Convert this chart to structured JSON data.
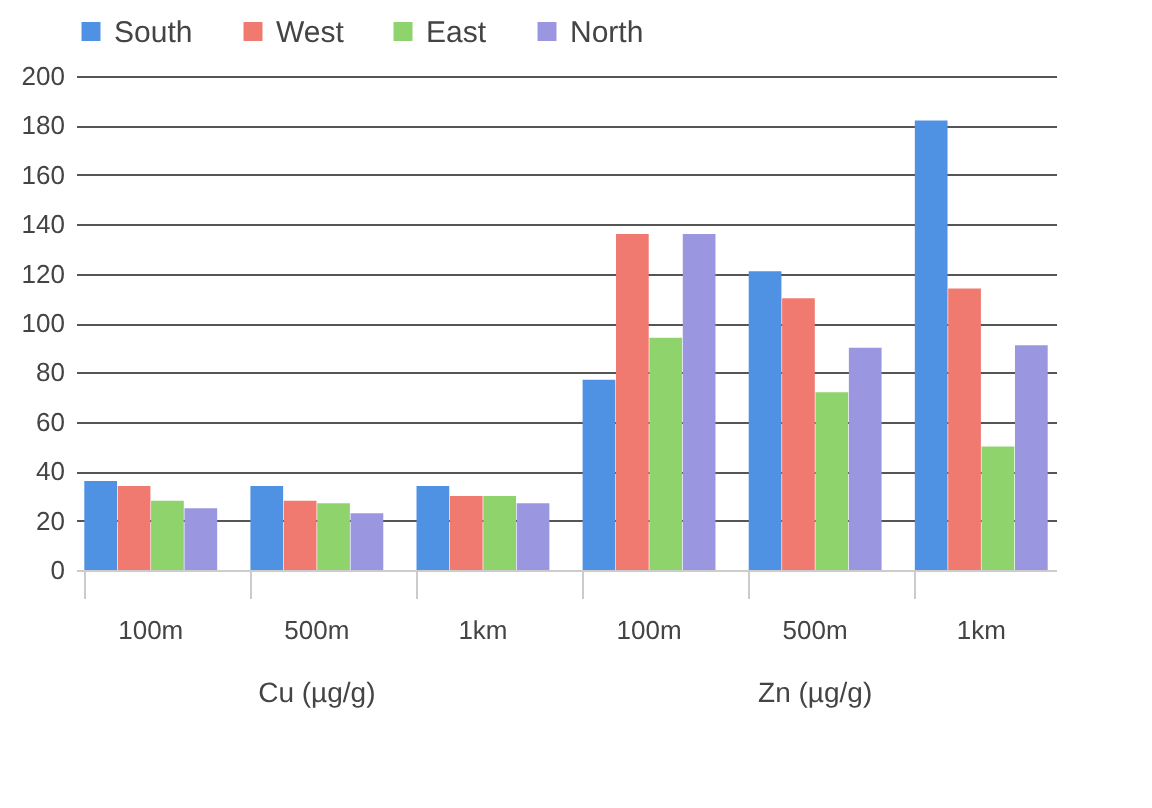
{
  "chart_data": {
    "type": "bar",
    "categories": [
      "100m",
      "500m",
      "1km",
      "100m",
      "500m",
      "1km"
    ],
    "series": [
      {
        "name": "South",
        "color": "#4f91e3",
        "values": [
          36,
          34,
          34,
          77,
          121,
          182
        ]
      },
      {
        "name": "West",
        "color": "#f07a70",
        "values": [
          34,
          28,
          30,
          136,
          110,
          114
        ]
      },
      {
        "name": "East",
        "color": "#8ed36c",
        "values": [
          28,
          27,
          30,
          94,
          72,
          50
        ]
      },
      {
        "name": "North",
        "color": "#9a97e0",
        "values": [
          25,
          23,
          27,
          136,
          90,
          91
        ]
      }
    ],
    "annotations": [
      "Cu (µg/g)",
      "Zn (µg/g)"
    ],
    "ylim": [
      0,
      200
    ],
    "yticks": [
      0,
      20,
      40,
      60,
      80,
      100,
      120,
      140,
      160,
      180,
      200
    ],
    "grid": "y",
    "legend": "top"
  }
}
